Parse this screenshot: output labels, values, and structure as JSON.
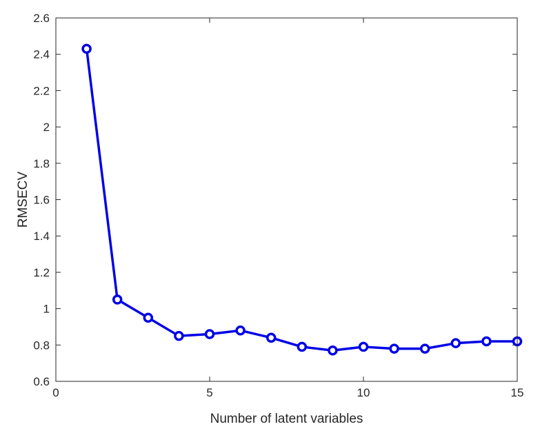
{
  "chart_data": {
    "type": "line",
    "title": "",
    "xlabel": "Number of latent variables",
    "ylabel": "RMSECV",
    "xlim": [
      0,
      15
    ],
    "ylim": [
      0.6,
      2.6
    ],
    "xticks": [
      0,
      5,
      10,
      15
    ],
    "yticks": [
      0.6,
      0.8,
      1,
      1.2,
      1.4,
      1.6,
      1.8,
      2,
      2.2,
      2.4,
      2.6
    ],
    "xtick_labels": [
      "0",
      "5",
      "10",
      "15"
    ],
    "ytick_labels": [
      "0.6",
      "0.8",
      "1",
      "1.2",
      "1.4",
      "1.6",
      "1.8",
      "2",
      "2.2",
      "2.4",
      "2.6"
    ],
    "grid": false,
    "series": [
      {
        "color": "#0000e6",
        "marker": "circle",
        "x": [
          1,
          2,
          3,
          4,
          5,
          6,
          7,
          8,
          9,
          10,
          11,
          12,
          13,
          14,
          15
        ],
        "y": [
          2.43,
          1.05,
          0.95,
          0.85,
          0.86,
          0.88,
          0.84,
          0.79,
          0.77,
          0.79,
          0.78,
          0.78,
          0.81,
          0.82,
          0.82
        ]
      }
    ]
  }
}
